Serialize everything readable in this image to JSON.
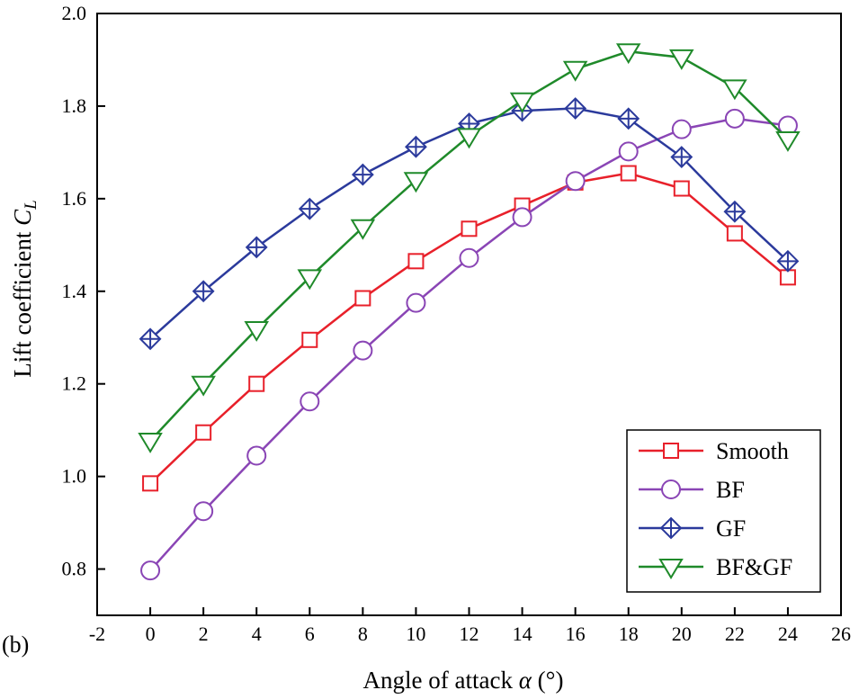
{
  "panel_label": "(b)",
  "chart_data": {
    "type": "line",
    "title": "",
    "xlabel": {
      "prefix": "Angle of attack ",
      "symbol": "α",
      "suffix": " (°)"
    },
    "ylabel": {
      "prefix": "Lift coefficient ",
      "symbol": "C",
      "subscript": "L"
    },
    "xlim": [
      -2,
      26
    ],
    "ylim": [
      0.7,
      2.0
    ],
    "xticks": [
      -2,
      0,
      2,
      4,
      6,
      8,
      10,
      12,
      14,
      16,
      18,
      20,
      22,
      24,
      26
    ],
    "xtick_labels": [
      "-2",
      "0",
      "2",
      "4",
      "6",
      "8",
      "10",
      "12",
      "14",
      "16",
      "18",
      "20",
      "22",
      "24",
      "26"
    ],
    "yticks": [
      0.8,
      1.0,
      1.2,
      1.4,
      1.6,
      1.8,
      2.0
    ],
    "ytick_labels": [
      "0.8",
      "1.0",
      "1.2",
      "1.4",
      "1.6",
      "1.8",
      "2.0"
    ],
    "grid": false,
    "legend": "bottom-right",
    "x": [
      0,
      2,
      4,
      6,
      8,
      10,
      12,
      14,
      16,
      18,
      20,
      22,
      24
    ],
    "series": [
      {
        "name": "Smooth",
        "color": "#e8202a",
        "marker": "square",
        "values": [
          0.985,
          1.095,
          1.2,
          1.295,
          1.385,
          1.465,
          1.535,
          1.585,
          1.635,
          1.655,
          1.622,
          1.525,
          1.43
        ]
      },
      {
        "name": "BF",
        "color": "#8a45b5",
        "marker": "circle",
        "values": [
          0.797,
          0.925,
          1.045,
          1.162,
          1.272,
          1.375,
          1.472,
          1.56,
          1.638,
          1.702,
          1.75,
          1.773,
          1.758
        ]
      },
      {
        "name": "GF",
        "color": "#2b3a9c",
        "marker": "diamond-cross",
        "values": [
          1.297,
          1.4,
          1.495,
          1.578,
          1.652,
          1.712,
          1.762,
          1.79,
          1.795,
          1.773,
          1.69,
          1.572,
          1.465
        ]
      },
      {
        "name": "BF&GF",
        "color": "#1f8a2a",
        "marker": "triangle-down",
        "values": [
          1.077,
          1.2,
          1.318,
          1.43,
          1.538,
          1.64,
          1.735,
          1.812,
          1.88,
          1.918,
          1.905,
          1.84,
          1.728
        ]
      }
    ]
  }
}
